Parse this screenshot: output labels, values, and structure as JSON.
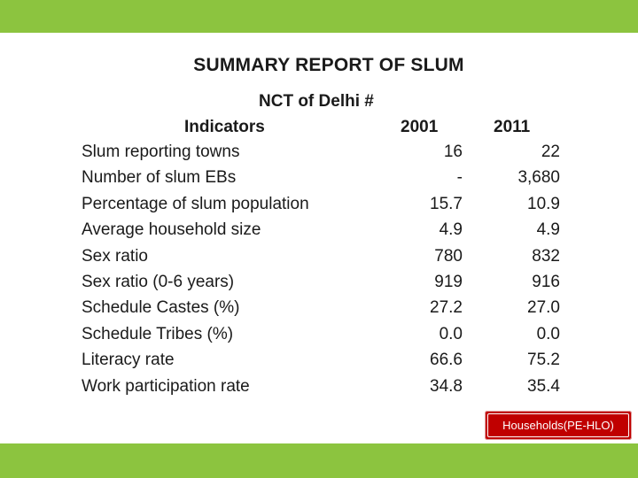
{
  "title": "SUMMARY REPORT OF SLUM",
  "subtitle": "NCT of Delhi #",
  "table": {
    "headers": {
      "indicator": "Indicators",
      "year1": "2001",
      "year2": "2011"
    },
    "rows": [
      {
        "label": "Slum reporting towns",
        "v2001": "16",
        "v2011": "22"
      },
      {
        "label": "Number of slum EBs",
        "v2001": "-",
        "v2011": "3,680"
      },
      {
        "label": "Percentage of slum population",
        "v2001": "15.7",
        "v2011": "10.9"
      },
      {
        "label": "Average household size",
        "v2001": "4.9",
        "v2011": "4.9"
      },
      {
        "label": "Sex ratio",
        "v2001": "780",
        "v2011": "832"
      },
      {
        "label": "Sex ratio (0-6 years)",
        "v2001": "919",
        "v2011": "916"
      },
      {
        "label": "Schedule Castes (%)",
        "v2001": "27.2",
        "v2011": "27.0"
      },
      {
        "label": "Schedule Tribes (%)",
        "v2001": "0.0",
        "v2011": "0.0"
      },
      {
        "label": "Literacy rate",
        "v2001": "66.6",
        "v2011": "75.2"
      },
      {
        "label": "Work participation rate",
        "v2001": "34.8",
        "v2011": "35.4"
      }
    ]
  },
  "source_label": "Households(PE-HLO)",
  "colors": {
    "band": "#8cc43f",
    "source_box": "#c00000"
  }
}
